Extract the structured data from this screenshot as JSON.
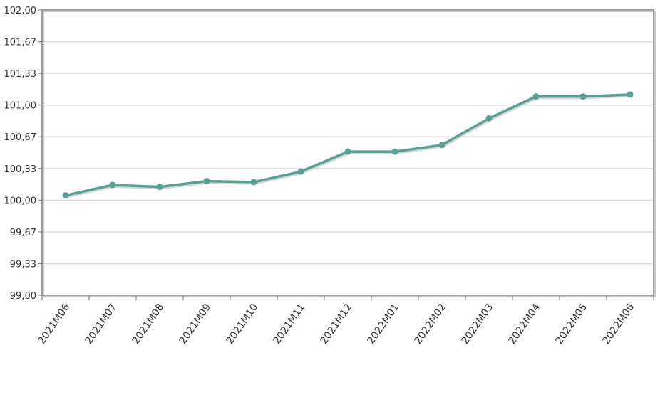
{
  "chart_data": {
    "type": "line",
    "title": "",
    "xlabel": "",
    "ylabel": "",
    "categories": [
      "2021M06",
      "2021M07",
      "2021M08",
      "2021M09",
      "2021M10",
      "2021M11",
      "2021M12",
      "2022M01",
      "2022M02",
      "2022M03",
      "2022M04",
      "2022M05",
      "2022M06"
    ],
    "series": [
      {
        "values": [
          100.05,
          100.16,
          100.14,
          100.2,
          100.19,
          100.3,
          100.51,
          100.51,
          100.58,
          100.86,
          101.09,
          101.09,
          101.11
        ]
      }
    ],
    "ylim": [
      99.0,
      102.0
    ],
    "yticks": [
      "99,00",
      "99,33",
      "99,67",
      "100,00",
      "100,33",
      "100,67",
      "101,00",
      "101,33",
      "101,67",
      "102,00"
    ],
    "grid": true,
    "legend": "none",
    "colors": {
      "line": "#5b9e94",
      "grid": "#d8d8d8",
      "frame": "#888888"
    }
  }
}
